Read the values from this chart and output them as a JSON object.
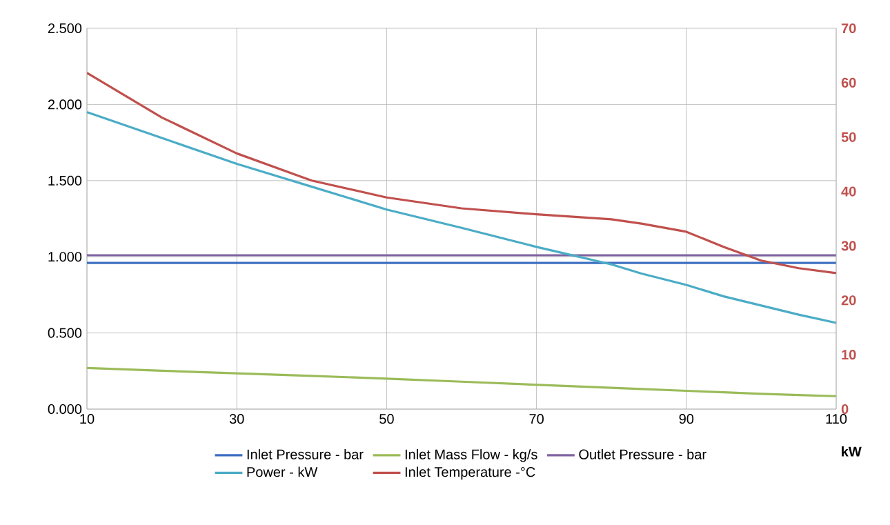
{
  "chart_data": {
    "type": "line",
    "xlabel": "kW",
    "x": [
      10,
      20,
      30,
      40,
      50,
      60,
      70,
      80,
      84,
      90,
      95,
      100,
      105,
      110
    ],
    "xlim": [
      10,
      110
    ],
    "xticks": [
      10,
      30,
      50,
      70,
      90,
      110
    ],
    "ylim": [
      0,
      2.5
    ],
    "yticks": [
      {
        "value": 0,
        "label": "0.000"
      },
      {
        "value": 0.5,
        "label": "0.500"
      },
      {
        "value": 1,
        "label": "1.000"
      },
      {
        "value": 1.5,
        "label": "1.500"
      },
      {
        "value": 2,
        "label": "2.000"
      },
      {
        "value": 2.5,
        "label": "2.500"
      }
    ],
    "y2lim": [
      0,
      70
    ],
    "y2ticks": [
      0,
      10,
      20,
      30,
      40,
      50,
      60,
      70
    ],
    "grid": true,
    "legend": "bottom",
    "series": [
      {
        "name": "Inlet Pressure - bar",
        "color": "#3d6fc2",
        "values": [
          0.96,
          0.96,
          0.96,
          0.96,
          0.96,
          0.96,
          0.96,
          0.96,
          0.96,
          0.96,
          0.96,
          0.96,
          0.96,
          0.96
        ]
      },
      {
        "name": "Inlet Mass Flow - kg/s",
        "color": "#9bbb59",
        "values": [
          0.27,
          0.252,
          0.235,
          0.218,
          0.2,
          0.18,
          0.16,
          0.14,
          0.132,
          0.12,
          0.11,
          0.1,
          0.092,
          0.085
        ]
      },
      {
        "name": "Outlet Pressure - bar",
        "color": "#8064a2",
        "values": [
          1.01,
          1.01,
          1.01,
          1.01,
          1.01,
          1.01,
          1.01,
          1.01,
          1.01,
          1.01,
          1.01,
          1.01,
          1.01,
          1.01
        ]
      },
      {
        "name": "Power - kW",
        "color": "#4bacc6",
        "values": [
          1.95,
          1.78,
          1.61,
          1.46,
          1.31,
          1.19,
          1.065,
          0.95,
          0.89,
          0.815,
          0.74,
          0.68,
          0.62,
          0.566
        ]
      },
      {
        "name": "Inlet Temperature -°C",
        "color": "#c0504d",
        "axis": "y2",
        "values": [
          61.8,
          53.6,
          47.0,
          42.0,
          38.9,
          36.9,
          35.8,
          34.9,
          34.1,
          32.6,
          29.8,
          27.3,
          25.9,
          25.0
        ]
      }
    ]
  }
}
